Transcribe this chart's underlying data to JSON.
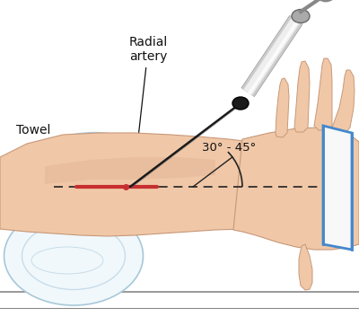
{
  "background_color": "#ffffff",
  "labels": {
    "radial_artery": "Radial\nartery",
    "towel": "Towel",
    "angle": "30° - 45°"
  },
  "skin_color": "#f0c8a8",
  "skin_light": "#f8dcc8",
  "skin_mid": "#e8b898",
  "skin_dark": "#c89878",
  "skin_shadow": "#d8a888",
  "towel_color": "#e8f4f8",
  "towel_light": "#f0f8fc",
  "towel_border": "#a8c8d8",
  "towel_shadow": "#c8dce8",
  "artery_color": "#c83030",
  "needle_dark": "#1a1a1a",
  "needle_metal": "#aaaaaa",
  "needle_light": "#dddddd",
  "dashed_color": "#222222",
  "table_line": "#888888",
  "strap_white": "#f8f8f8",
  "strap_blue": "#4488cc",
  "strap_shadow": "#ddeeff",
  "annotation_color": "#111111",
  "font_size": 9.5
}
